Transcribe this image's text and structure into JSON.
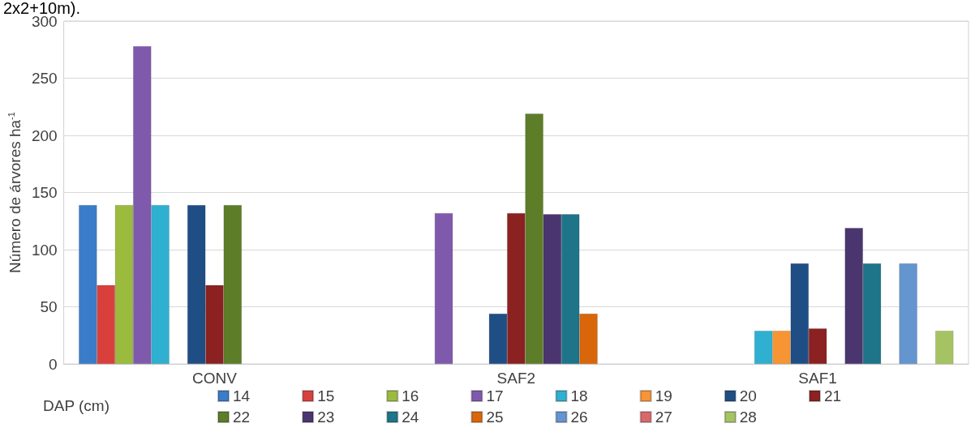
{
  "chart_data": {
    "type": "bar",
    "ylabel": "Número de árvores ha$^{-1}$",
    "legend_title": "DAP (cm)",
    "annotations": [
      "2x2+10m)."
    ],
    "categories": [
      "CONV",
      "SAF2",
      "SAF1"
    ],
    "series": [
      {
        "name": "14",
        "color": "#3a7cc8",
        "values": [
          139,
          null,
          null
        ]
      },
      {
        "name": "15",
        "color": "#d9403c",
        "values": [
          69,
          null,
          null
        ]
      },
      {
        "name": "16",
        "color": "#9bbb3f",
        "values": [
          139,
          null,
          null
        ]
      },
      {
        "name": "17",
        "color": "#7f5aac",
        "values": [
          278,
          132,
          null
        ]
      },
      {
        "name": "18",
        "color": "#2fb0d0",
        "values": [
          139,
          null,
          29
        ]
      },
      {
        "name": "19",
        "color": "#f79434",
        "values": [
          null,
          null,
          29
        ]
      },
      {
        "name": "20",
        "color": "#1f4e85",
        "values": [
          139,
          44,
          88
        ]
      },
      {
        "name": "21",
        "color": "#8b2120",
        "values": [
          69,
          132,
          31
        ]
      },
      {
        "name": "22",
        "color": "#5e7d28",
        "values": [
          139,
          219,
          null
        ]
      },
      {
        "name": "23",
        "color": "#4b356f",
        "values": [
          null,
          131,
          119
        ]
      },
      {
        "name": "24",
        "color": "#1e7489",
        "values": [
          null,
          131,
          88
        ]
      },
      {
        "name": "25",
        "color": "#d9660a",
        "values": [
          null,
          44,
          null
        ]
      },
      {
        "name": "26",
        "color": "#6495cf",
        "values": [
          null,
          null,
          88
        ]
      },
      {
        "name": "27",
        "color": "#d9686a",
        "values": [
          null,
          null,
          null
        ]
      },
      {
        "name": "28",
        "color": "#a6c364",
        "values": [
          null,
          null,
          29
        ]
      }
    ],
    "ylim": [
      0,
      300
    ],
    "yticks": [
      0,
      50,
      100,
      150,
      200,
      250,
      300
    ],
    "grid": "y",
    "legend": "bottom"
  }
}
